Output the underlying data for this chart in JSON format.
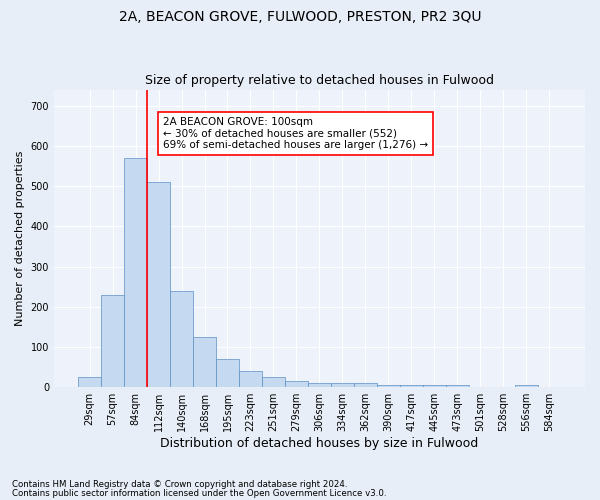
{
  "title": "2A, BEACON GROVE, FULWOOD, PRESTON, PR2 3QU",
  "subtitle": "Size of property relative to detached houses in Fulwood",
  "xlabel": "Distribution of detached houses by size in Fulwood",
  "ylabel": "Number of detached properties",
  "footnote1": "Contains HM Land Registry data © Crown copyright and database right 2024.",
  "footnote2": "Contains public sector information licensed under the Open Government Licence v3.0.",
  "annotation_line1": "2A BEACON GROVE: 100sqm",
  "annotation_line2": "← 30% of detached houses are smaller (552)",
  "annotation_line3": "69% of semi-detached houses are larger (1,276) →",
  "bar_color": "#c5d9f0",
  "bar_edge_color": "#5a8fc5",
  "bin_labels": [
    "29sqm",
    "57sqm",
    "84sqm",
    "112sqm",
    "140sqm",
    "168sqm",
    "195sqm",
    "223sqm",
    "251sqm",
    "279sqm",
    "306sqm",
    "334sqm",
    "362sqm",
    "390sqm",
    "417sqm",
    "445sqm",
    "473sqm",
    "501sqm",
    "528sqm",
    "556sqm",
    "584sqm"
  ],
  "bar_heights": [
    25,
    230,
    570,
    510,
    240,
    125,
    70,
    40,
    25,
    15,
    10,
    10,
    10,
    5,
    5,
    5,
    5,
    0,
    0,
    5,
    0
  ],
  "red_line_x": 2.5,
  "ylim": [
    0,
    740
  ],
  "yticks": [
    0,
    100,
    200,
    300,
    400,
    500,
    600,
    700
  ],
  "background_color": "#e8eef7",
  "plot_bg_color": "#eef2fa",
  "grid_color": "#ffffff",
  "title_fontsize": 10,
  "subtitle_fontsize": 9,
  "tick_fontsize": 7,
  "ylabel_fontsize": 8,
  "xlabel_fontsize": 9
}
